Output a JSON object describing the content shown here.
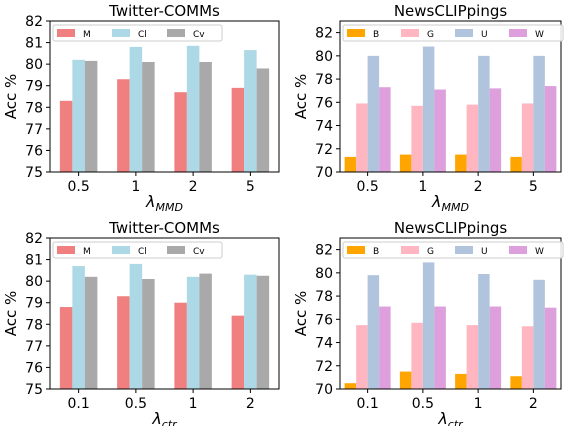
{
  "chart_data": [
    {
      "type": "bar",
      "title": "Twitter-COMMs",
      "ylabel": "Acc %",
      "xlabel_symbol": "λ",
      "xlabel_sub": "MMD",
      "categories": [
        "0.5",
        "1",
        "2",
        "5"
      ],
      "ylim": [
        75,
        82
      ],
      "yticks": [
        75,
        76,
        77,
        78,
        79,
        80,
        81,
        82
      ],
      "legend_position": "upper-left",
      "series": [
        {
          "name": "M",
          "color": "#f08080",
          "values": [
            78.3,
            79.3,
            78.7,
            78.9
          ]
        },
        {
          "name": "Cl",
          "color": "#add8e6",
          "values": [
            80.2,
            80.8,
            80.85,
            80.65
          ]
        },
        {
          "name": "Cv",
          "color": "#a9a9a9",
          "values": [
            80.15,
            80.1,
            80.1,
            79.8
          ]
        }
      ]
    },
    {
      "type": "bar",
      "title": "NewsCLIPpings",
      "ylabel": "Acc %",
      "xlabel_symbol": "λ",
      "xlabel_sub": "MMD",
      "categories": [
        "0.5",
        "1",
        "2",
        "5"
      ],
      "ylim": [
        70,
        83
      ],
      "yticks": [
        70,
        72,
        74,
        76,
        78,
        80,
        82
      ],
      "legend_position": "upper-left",
      "series": [
        {
          "name": "B",
          "color": "#ffa500",
          "values": [
            71.3,
            71.5,
            71.5,
            71.3
          ]
        },
        {
          "name": "G",
          "color": "#ffb6c1",
          "values": [
            75.9,
            75.7,
            75.8,
            75.9
          ]
        },
        {
          "name": "U",
          "color": "#b0c4de",
          "values": [
            80.0,
            80.8,
            80.0,
            80.0
          ]
        },
        {
          "name": "W",
          "color": "#dda0dd",
          "values": [
            77.3,
            77.1,
            77.2,
            77.4
          ]
        }
      ]
    },
    {
      "type": "bar",
      "title": "Twitter-COMMs",
      "ylabel": "Acc %",
      "xlabel_symbol": "λ",
      "xlabel_sub": "ctr",
      "categories": [
        "0.1",
        "0.5",
        "1",
        "2"
      ],
      "ylim": [
        75,
        82
      ],
      "yticks": [
        75,
        76,
        77,
        78,
        79,
        80,
        81,
        82
      ],
      "legend_position": "upper-left",
      "series": [
        {
          "name": "M",
          "color": "#f08080",
          "values": [
            78.8,
            79.3,
            79.0,
            78.4
          ]
        },
        {
          "name": "Cl",
          "color": "#add8e6",
          "values": [
            80.7,
            80.8,
            80.2,
            80.3
          ]
        },
        {
          "name": "Cv",
          "color": "#a9a9a9",
          "values": [
            80.2,
            80.1,
            80.35,
            80.25
          ]
        }
      ]
    },
    {
      "type": "bar",
      "title": "NewsCLIPpings",
      "ylabel": "Acc %",
      "xlabel_symbol": "λ",
      "xlabel_sub": "ctr",
      "categories": [
        "0.1",
        "0.5",
        "1",
        "2"
      ],
      "ylim": [
        70,
        83
      ],
      "yticks": [
        70,
        72,
        74,
        76,
        78,
        80,
        82
      ],
      "legend_position": "upper-left",
      "series": [
        {
          "name": "B",
          "color": "#ffa500",
          "values": [
            70.5,
            71.5,
            71.3,
            71.1
          ]
        },
        {
          "name": "G",
          "color": "#ffb6c1",
          "values": [
            75.5,
            75.7,
            75.5,
            75.4
          ]
        },
        {
          "name": "U",
          "color": "#b0c4de",
          "values": [
            79.8,
            80.9,
            79.9,
            79.4
          ]
        },
        {
          "name": "W",
          "color": "#dda0dd",
          "values": [
            77.1,
            77.1,
            77.1,
            77.0
          ]
        }
      ]
    }
  ]
}
